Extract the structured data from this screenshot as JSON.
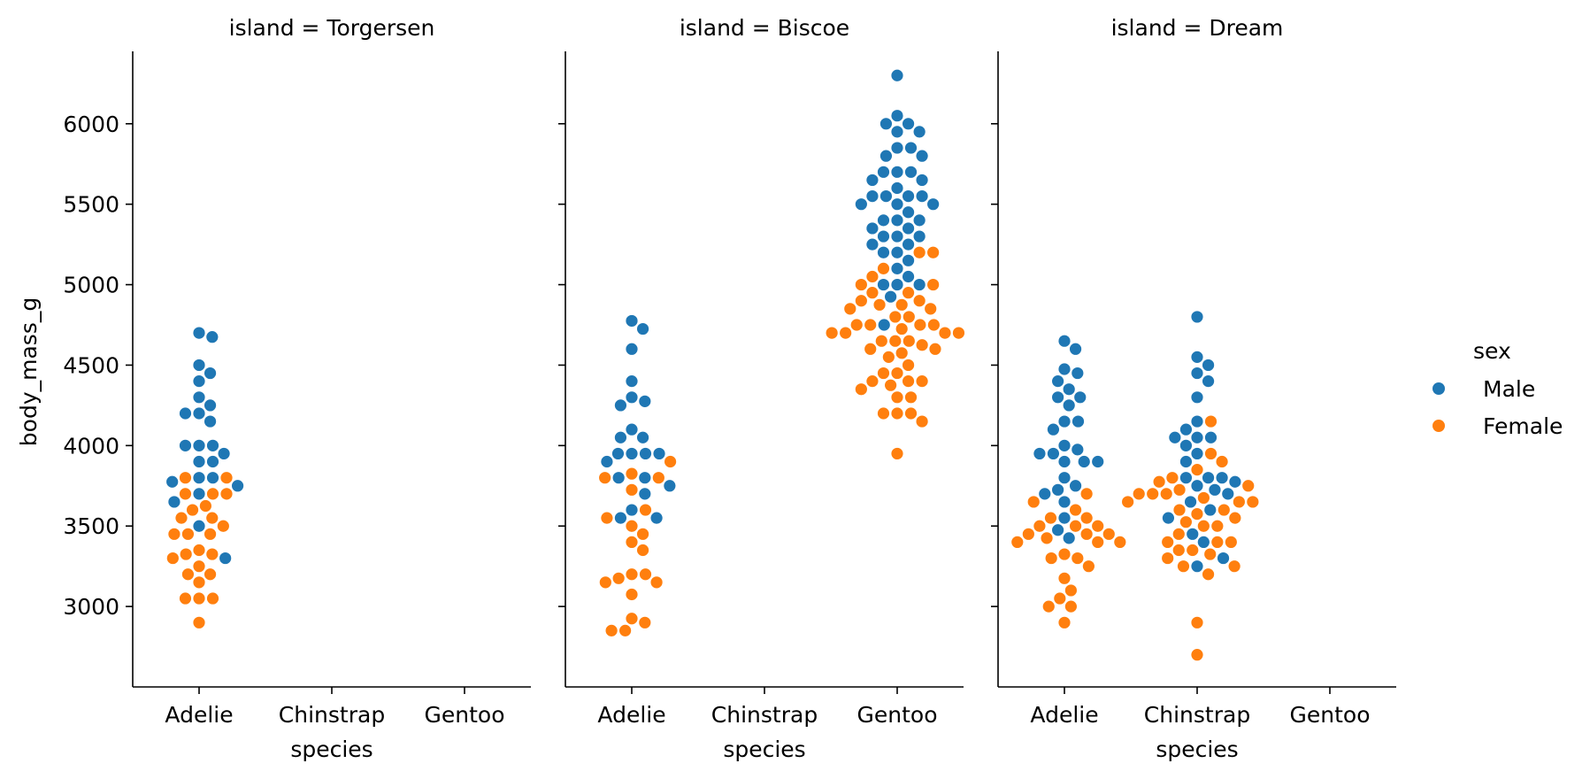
{
  "chart_data": {
    "type": "scatter",
    "subtype": "swarm",
    "facet_titles": [
      "island = Torgersen",
      "island = Biscoe",
      "island = Dream"
    ],
    "categories": [
      "Adelie",
      "Chinstrap",
      "Gentoo"
    ],
    "xlabel": "species",
    "ylabel": "body_mass_g",
    "yticks": [
      3000,
      3500,
      4000,
      4500,
      5000,
      5500,
      6000
    ],
    "ylim": [
      2500,
      6450
    ],
    "grid": false,
    "legend": {
      "title": "sex",
      "placement": "right",
      "entries": [
        {
          "label": "Male",
          "color": "#1f77b4"
        },
        {
          "label": "Female",
          "color": "#ff7f0e"
        }
      ]
    },
    "panels": [
      {
        "island": "Torgersen",
        "groups": [
          {
            "species": "Adelie",
            "Male": [
              3300,
              3500,
              3650,
              3700,
              3750,
              3775,
              3800,
              3800,
              3900,
              3900,
              3950,
              4000,
              4000,
              4000,
              4150,
              4200,
              4200,
              4250,
              4300,
              4400,
              4450,
              4500,
              4675,
              4700
            ],
            "Female": [
              2900,
              3050,
              3050,
              3050,
              3150,
              3200,
              3200,
              3250,
              3300,
              3325,
              3325,
              3350,
              3450,
              3450,
              3450,
              3500,
              3550,
              3550,
              3600,
              3625,
              3700,
              3700,
              3700,
              3800,
              3800
            ]
          }
        ]
      },
      {
        "island": "Biscoe",
        "groups": [
          {
            "species": "Adelie",
            "Male": [
              3550,
              3550,
              3600,
              3700,
              3750,
              3800,
              3800,
              3900,
              3950,
              3950,
              3950,
              3950,
              4050,
              4050,
              4100,
              4250,
              4275,
              4300,
              4400,
              4600,
              4725,
              4775
            ],
            "Female": [
              2850,
              2850,
              2900,
              2925,
              3075,
              3150,
              3150,
              3175,
              3200,
              3200,
              3350,
              3400,
              3450,
              3500,
              3550,
              3600,
              3725,
              3800,
              3800,
              3825,
              3900
            ]
          },
          {
            "species": "Gentoo",
            "Male": [
              4750,
              4925,
              5000,
              5000,
              5000,
              5050,
              5100,
              5150,
              5200,
              5200,
              5250,
              5250,
              5300,
              5300,
              5300,
              5350,
              5350,
              5400,
              5400,
              5400,
              5450,
              5500,
              5500,
              5500,
              5550,
              5550,
              5550,
              5550,
              5600,
              5650,
              5650,
              5700,
              5700,
              5700,
              5800,
              5800,
              5850,
              5850,
              5950,
              5950,
              6000,
              6000,
              6050,
              6300
            ],
            "Female": [
              3950,
              4150,
              4200,
              4200,
              4200,
              4300,
              4300,
              4350,
              4375,
              4400,
              4400,
              4400,
              4450,
              4450,
              4500,
              4550,
              4575,
              4600,
              4600,
              4625,
              4650,
              4650,
              4650,
              4700,
              4700,
              4700,
              4700,
              4725,
              4750,
              4750,
              4750,
              4750,
              4800,
              4800,
              4850,
              4850,
              4875,
              4875,
              4900,
              4900,
              4950,
              4950,
              5000,
              5000,
              5050,
              5100,
              5200,
              5200
            ]
          }
        ]
      },
      {
        "island": "Dream",
        "groups": [
          {
            "species": "Adelie",
            "Male": [
              3425,
              3550,
              3650,
              3700,
              3725,
              3750,
              3800,
              3900,
              3900,
              3900,
              3950,
              3950,
              3975,
              4000,
              4100,
              4150,
              4150,
              4250,
              4300,
              4300,
              4350,
              4400,
              4450,
              4475,
              4600,
              4650,
              3475
            ],
            "Female": [
              2900,
              3000,
              3000,
              3050,
              3100,
              3175,
              3250,
              3300,
              3300,
              3325,
              3400,
              3400,
              3400,
              3450,
              3450,
              3450,
              3500,
              3500,
              3500,
              3550,
              3550,
              3600,
              3650,
              3700,
              3425
            ]
          },
          {
            "species": "Chinstrap",
            "Male": [
              3250,
              3300,
              3400,
              3450,
              3550,
              3600,
              3650,
              3700,
              3725,
              3750,
              3775,
              3800,
              3800,
              3800,
              3900,
              3950,
              4000,
              4050,
              4050,
              4050,
              4100,
              4150,
              4300,
              4400,
              4450,
              4500,
              4550,
              4800
            ],
            "Female": [
              2700,
              2900,
              3200,
              3250,
              3250,
              3300,
              3325,
              3350,
              3350,
              3400,
              3400,
              3400,
              3450,
              3500,
              3500,
              3525,
              3550,
              3575,
              3600,
              3600,
              3650,
              3650,
              3650,
              3675,
              3700,
              3700,
              3700,
              3725,
              3750,
              3775,
              3800,
              3850,
              3900,
              3950,
              4150
            ]
          }
        ]
      }
    ]
  }
}
